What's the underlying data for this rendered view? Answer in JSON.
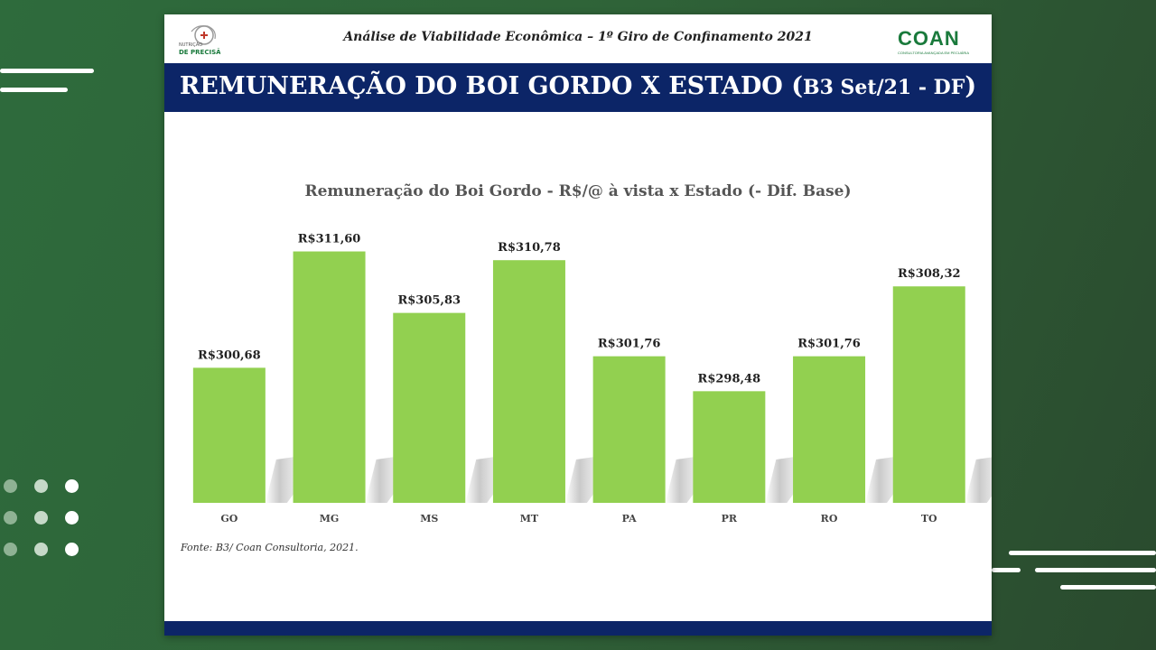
{
  "header": {
    "subtitle": "Análise de Viabilidade Econômica – 1º Giro de Confinamento 2021",
    "logo_left_text": [
      "NUTRIÇÃO",
      "DE PRECISÃO"
    ],
    "logo_right_text": "COAN",
    "logo_right_tagline": "CONSULTORIA AVANÇADA EM PECUÁRIA"
  },
  "title": {
    "main": "REMUNERAÇÃO DO BOI GORDO X ESTADO",
    "paren_open": "(",
    "paren_sub": "B3 Set/21 - DF",
    "paren_close": ")"
  },
  "source": "Fonte: B3/ Coan Consultoria, 2021.",
  "colors": {
    "bar": "#92d050",
    "band": "#0c2567",
    "logo_green": "#1a7a3c"
  },
  "chart_data": {
    "type": "bar",
    "title": "Remuneração do Boi Gordo - R$/@ à vista x Estado (- Dif. Base)",
    "categories": [
      "GO",
      "MG",
      "MS",
      "MT",
      "PA",
      "PR",
      "RO",
      "TO"
    ],
    "values": [
      300.68,
      311.6,
      305.83,
      310.78,
      301.76,
      298.48,
      301.76,
      308.32
    ],
    "data_labels": [
      "R$300,68",
      "R$311,60",
      "R$305,83",
      "R$310,78",
      "R$301,76",
      "R$298,48",
      "R$301,76",
      "R$308,32"
    ],
    "xlabel": "",
    "ylabel": "",
    "ylim": [
      288,
      313
    ],
    "grid": false,
    "legend": "none"
  }
}
